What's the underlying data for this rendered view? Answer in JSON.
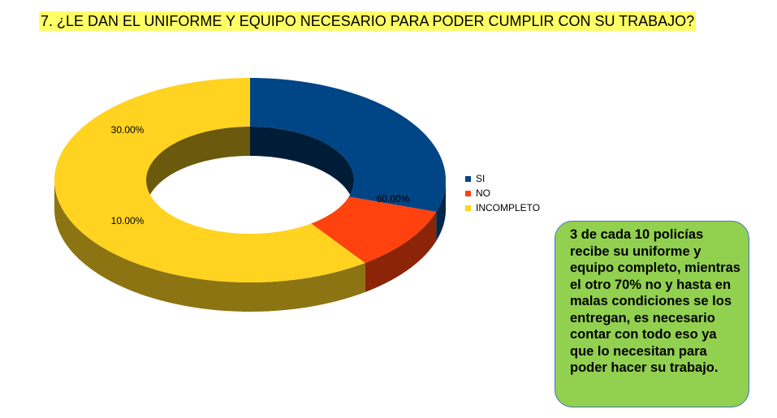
{
  "title": "7. ¿LE DAN EL UNIFORME Y EQUIPO NECESARIO PARA PODER CUMPLIR CON SU TRABAJO?",
  "chart_data": {
    "type": "pie",
    "style": "3d-donut",
    "categories": [
      "SI",
      "NO",
      "INCOMPLETO"
    ],
    "values": [
      30,
      10,
      60
    ],
    "data_labels": [
      "30.00%",
      "10.00%",
      "60.00%"
    ],
    "colors": [
      "#004586",
      "#ff420e",
      "#ffd320"
    ],
    "legend_placement": "right"
  },
  "note": {
    "text": "3 de cada 10 policías recibe su uniforme y equipo completo, mientras el otro 70% no y hasta en malas condiciones se los entregan, es necesario contar con todo eso ya que lo necesitan para poder hacer su trabajo."
  }
}
